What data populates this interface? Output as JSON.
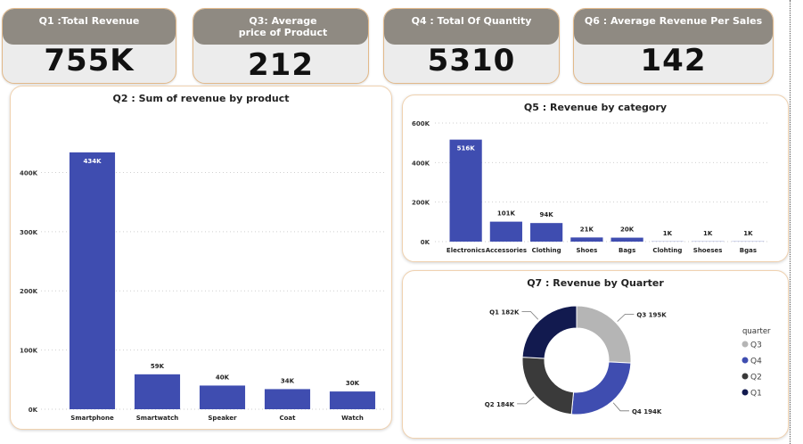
{
  "kpis": [
    {
      "title": "Q1 :Total Revenue",
      "value": "755K"
    },
    {
      "title": "Q3: Average price of Product",
      "value": "212"
    },
    {
      "title": "Q4 : Total Of Quantity",
      "value": "5310"
    },
    {
      "title": "Q6 : Average Revenue Per Sales",
      "value": "142"
    }
  ],
  "colors": {
    "bar": "#3f4db0",
    "q1": "#121a4f",
    "q2": "#3a3a3a",
    "q3": "#b5b5b5",
    "q4": "#3f4db0"
  },
  "chart_data": [
    {
      "type": "bar",
      "title": "Q2 : Sum of revenue by product",
      "categories": [
        "Smartphone",
        "Smartwatch",
        "Speaker",
        "Coat",
        "Watch"
      ],
      "values": [
        434000,
        59000,
        40000,
        34000,
        30000
      ],
      "data_labels": [
        "434K",
        "59K",
        "40K",
        "34K",
        "30K"
      ],
      "yticks": [
        0,
        100000,
        200000,
        300000,
        400000
      ],
      "ytick_labels": [
        "0K",
        "100K",
        "200K",
        "300K",
        "400K"
      ],
      "ylim": [
        0,
        470000
      ],
      "grid": true
    },
    {
      "type": "bar",
      "title": "Q5 : Revenue by category",
      "categories": [
        "Electronics",
        "Accessories",
        "Clothing",
        "Shoes",
        "Bags",
        "Clohting",
        "Shoeses",
        "Bgas"
      ],
      "values": [
        516000,
        101000,
        94000,
        21000,
        20000,
        1000,
        1000,
        1000
      ],
      "data_labels": [
        "516K",
        "101K",
        "94K",
        "21K",
        "20K",
        "1K",
        "1K",
        "1K"
      ],
      "yticks": [
        0,
        200000,
        400000,
        600000
      ],
      "ytick_labels": [
        "0K",
        "200K",
        "400K",
        "600K"
      ],
      "ylim": [
        0,
        600000
      ],
      "grid": true
    },
    {
      "type": "pie",
      "title": "Q7 : Revenue by Quarter",
      "legend_title": "quarter",
      "legend_position": "right",
      "legend": [
        "Q3",
        "Q4",
        "Q2",
        "Q1"
      ],
      "slices": [
        {
          "label": "Q3",
          "value": 195000,
          "data_label": "Q3 195K"
        },
        {
          "label": "Q4",
          "value": 194000,
          "data_label": "Q4 194K"
        },
        {
          "label": "Q2",
          "value": 184000,
          "data_label": "Q2 184K"
        },
        {
          "label": "Q1",
          "value": 182000,
          "data_label": "Q1 182K"
        }
      ]
    }
  ]
}
